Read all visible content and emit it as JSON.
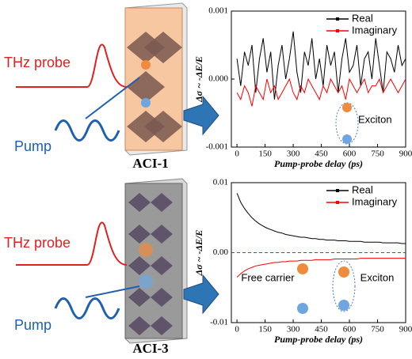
{
  "diagram": {
    "panels": [
      {
        "probe": "THz probe",
        "pump": "Pump",
        "sample": "ACI-1"
      },
      {
        "probe": "THz probe",
        "pump": "Pump",
        "sample": "ACI-3"
      }
    ]
  },
  "chart_data": [
    {
      "type": "line",
      "xlabel": "Pump-probe delay (ps)",
      "ylabel": "Δσ ~ -ΔE/E",
      "xlim": [
        -30,
        900
      ],
      "xticks": [
        0,
        150,
        300,
        450,
        600,
        750,
        900
      ],
      "ylim": [
        -0.001,
        0.001
      ],
      "yticks": [
        -0.001,
        {
          "value": 0,
          "label": "0.000"
        },
        0.001
      ],
      "legend": "upper right",
      "zero_line": false,
      "annotations": [
        "Exciton"
      ],
      "x": [
        0,
        20,
        40,
        60,
        80,
        100,
        120,
        140,
        160,
        180,
        200,
        220,
        240,
        260,
        280,
        300,
        320,
        340,
        360,
        380,
        400,
        420,
        440,
        460,
        480,
        500,
        520,
        540,
        560,
        580,
        600,
        620,
        640,
        660,
        680,
        700,
        720,
        740,
        760,
        780,
        800,
        820,
        840,
        860,
        880,
        900
      ],
      "series": [
        {
          "name": "Real",
          "color": "#000000",
          "values": [
            0.0003,
            -0.0001,
            0.0004,
            0.0002,
            0.0005,
            -0.0002,
            0.0003,
            0.0006,
            0.0001,
            0.0004,
            -0.0003,
            0.0002,
            0.0005,
            0,
            0.0003,
            0.0007,
            0.0001,
            -0.0002,
            0.0004,
            0.0002,
            0.0006,
            0,
            0.0003,
            -0.0001,
            0.0005,
            0.0002,
            0.0004,
            -0.0002,
            0.0003,
            0.0006,
            0.0001,
            0.0002,
            0.0005,
            -0.0001,
            0.0003,
            0.0004,
            0,
            0.0006,
            0.0002,
            -0.0002,
            0.0004,
            0.0003,
            0.0001,
            0.0005,
            0.0002,
            0.0003
          ]
        },
        {
          "name": "Imaginary",
          "color": "#ff0000",
          "values": [
            -0.0002,
            -0.0003,
            -0.0001,
            -0.0002,
            -0.0004,
            -0.0001,
            -0.0002,
            -0.0003,
            0,
            -0.0002,
            -0.0001,
            -0.0003,
            -0.0002,
            -0.0001,
            0,
            -0.0002,
            -0.0003,
            -0.0001,
            -0.0002,
            0,
            -0.0001,
            -0.0002,
            -0.0003,
            -0.0001,
            -0.0002,
            0,
            -0.0001,
            -0.0002,
            -0.0001,
            -0.0003,
            0,
            -0.0001,
            -0.0002,
            -0.0001,
            0,
            -0.0002,
            -0.0001,
            -0.0001,
            0,
            -0.0002,
            -0.0001,
            0,
            -0.0001,
            -0.0002,
            -0.0001,
            0
          ]
        }
      ]
    },
    {
      "type": "line",
      "xlabel": "Pump-probe delay (ps)",
      "ylabel": "Δσ ~ -ΔE/E",
      "xlim": [
        -30,
        900
      ],
      "xticks": [
        0,
        150,
        300,
        450,
        600,
        750,
        900
      ],
      "ylim": [
        -0.01,
        0.01
      ],
      "yticks": [
        -0.01,
        {
          "value": 0,
          "label": "0.00"
        },
        0.01
      ],
      "legend": "upper right",
      "zero_line": true,
      "annotations": [
        "Free carrier",
        "Exciton"
      ],
      "x": [
        0,
        20,
        40,
        60,
        80,
        100,
        120,
        140,
        160,
        180,
        200,
        220,
        240,
        260,
        280,
        300,
        320,
        340,
        360,
        380,
        400,
        420,
        440,
        460,
        480,
        500,
        520,
        540,
        560,
        580,
        600,
        620,
        640,
        660,
        680,
        700,
        720,
        740,
        760,
        780,
        800,
        820,
        840,
        860,
        880,
        900
      ],
      "series": [
        {
          "name": "Real",
          "color": "#000000",
          "values": [
            0.0085,
            0.0072,
            0.0063,
            0.0056,
            0.005,
            0.0045,
            0.0041,
            0.0038,
            0.0035,
            0.0033,
            0.0031,
            0.0029,
            0.0028,
            0.0026,
            0.0025,
            0.0024,
            0.0023,
            0.0022,
            0.0022,
            0.0021,
            0.002,
            0.002,
            0.0019,
            0.0019,
            0.0018,
            0.0018,
            0.0018,
            0.0017,
            0.0017,
            0.0017,
            0.0016,
            0.0016,
            0.0016,
            0.0016,
            0.0015,
            0.0015,
            0.0015,
            0.0015,
            0.0015,
            0.0014,
            0.0014,
            0.0014,
            0.0014,
            0.0014,
            0.0013,
            0.0013
          ]
        },
        {
          "name": "Imaginary",
          "color": "#ff0000",
          "values": [
            -0.0035,
            -0.003,
            -0.0026,
            -0.0023,
            -0.0021,
            -0.0019,
            -0.0018,
            -0.0017,
            -0.0016,
            -0.0015,
            -0.0014,
            -0.0014,
            -0.0013,
            -0.0013,
            -0.0012,
            -0.0012,
            -0.0012,
            -0.0011,
            -0.0011,
            -0.0011,
            -0.0011,
            -0.001,
            -0.001,
            -0.001,
            -0.001,
            -0.001,
            -0.0009,
            -0.0009,
            -0.0009,
            -0.0009,
            -0.0009,
            -0.0009,
            -0.0009,
            -0.0008,
            -0.0008,
            -0.0008,
            -0.0008,
            -0.0008,
            -0.0008,
            -0.0008,
            -0.0008,
            -0.0008,
            -0.0008,
            -0.0008,
            -0.0008,
            -0.0008
          ]
        }
      ]
    }
  ]
}
